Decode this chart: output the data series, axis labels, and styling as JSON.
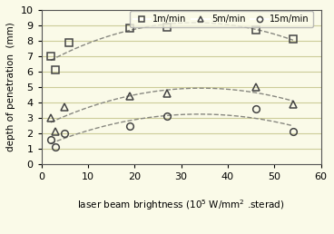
{
  "background_color": "#fafae8",
  "xlabel_main": "laser beam brightness (10",
  "xlabel_exp": "5",
  "xlabel_unit": " W/mm",
  "xlabel_exp2": "2",
  "xlabel_end": " .sterad)",
  "ylabel": "depth of penetration  (mm)",
  "xlim": [
    0,
    60
  ],
  "ylim": [
    0,
    10
  ],
  "xticks": [
    0,
    10,
    20,
    30,
    40,
    50,
    60
  ],
  "yticks": [
    0,
    1,
    2,
    3,
    4,
    5,
    6,
    7,
    8,
    9,
    10
  ],
  "series": [
    {
      "label": "1m/min",
      "marker": "s",
      "color": "#444444",
      "x": [
        2,
        3,
        6,
        19,
        27,
        46,
        54
      ],
      "y": [
        7.0,
        6.1,
        7.9,
        8.8,
        8.9,
        8.7,
        8.1
      ]
    },
    {
      "label": "5m/min",
      "marker": "^",
      "color": "#444444",
      "x": [
        2,
        3,
        5,
        19,
        27,
        46,
        54
      ],
      "y": [
        3.0,
        2.1,
        3.7,
        4.4,
        4.6,
        5.0,
        3.9
      ]
    },
    {
      "label": "15m/min",
      "marker": "o",
      "color": "#444444",
      "x": [
        2,
        3,
        5,
        19,
        27,
        46,
        54
      ],
      "y": [
        1.6,
        1.1,
        2.0,
        2.5,
        3.1,
        3.6,
        2.1
      ]
    }
  ],
  "grid_color": "#cccc99",
  "line_color": "#888880",
  "marker_size": 5.5,
  "marker_facecolor": "none",
  "marker_edgewidth": 1.1,
  "tick_fontsize": 8,
  "label_fontsize": 7.5,
  "legend_fontsize": 7
}
